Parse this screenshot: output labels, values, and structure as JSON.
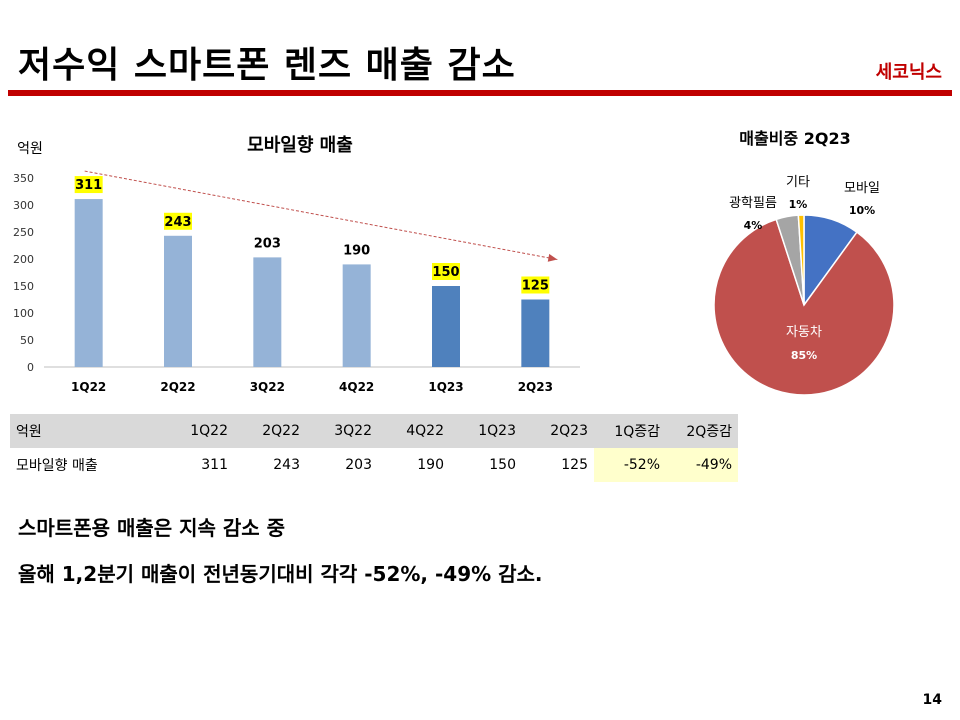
{
  "slide": {
    "title": "저수익 스마트폰 렌즈 매출 감소",
    "company": "세코닉스",
    "page_number": "14",
    "bullets": [
      "스마트폰용 매출은 지속 감소 중",
      "올해 1,2분기 매출이 전년동기대비 각각 -52%, -49% 감소."
    ]
  },
  "colors": {
    "accent": "#c00000",
    "bar_light": "#95b3d7",
    "bar_dark": "#4f81bd",
    "label_highlight": "#ffff00",
    "trend_arrow": "#c0504d",
    "pie_mobile": "#4472c4",
    "pie_auto": "#c0504d",
    "pie_optical": "#a5a5a5",
    "pie_other": "#ffc000",
    "table_highlight": "#ffffcc"
  },
  "table": {
    "header": [
      "억원",
      "1Q22",
      "2Q22",
      "3Q22",
      "4Q22",
      "1Q23",
      "2Q23",
      "1Q증감",
      "2Q증감"
    ],
    "rows": [
      [
        "모바일향 매출",
        "311",
        "243",
        "203",
        "190",
        "150",
        "125",
        "-52%",
        "-49%"
      ]
    ]
  },
  "chart_data": [
    {
      "type": "bar",
      "title": "모바일향 매출",
      "ylabel": "억원",
      "categories": [
        "1Q22",
        "2Q22",
        "3Q22",
        "4Q22",
        "1Q23",
        "2Q23"
      ],
      "values": [
        311,
        243,
        203,
        190,
        150,
        125
      ],
      "ylim": [
        0,
        350
      ],
      "yticks": [
        0,
        50,
        100,
        150,
        200,
        250,
        300,
        350
      ],
      "highlighted_labels": [
        true,
        true,
        false,
        false,
        true,
        true
      ],
      "dark_bars": [
        false,
        false,
        false,
        false,
        true,
        true
      ],
      "grid": false,
      "trend_arrow": {
        "from": "1Q22",
        "to": "2Q23"
      }
    },
    {
      "type": "pie",
      "title": "매출비중 2Q23",
      "slices": [
        {
          "label": "모바일",
          "value": 10,
          "display": "10%",
          "color": "#4472c4"
        },
        {
          "label": "자동차",
          "value": 85,
          "display": "85%",
          "color": "#c0504d"
        },
        {
          "label": "광학필름",
          "value": 4,
          "display": "4%",
          "color": "#a5a5a5"
        },
        {
          "label": "기타",
          "value": 1,
          "display": "1%",
          "color": "#ffc000"
        }
      ]
    }
  ]
}
